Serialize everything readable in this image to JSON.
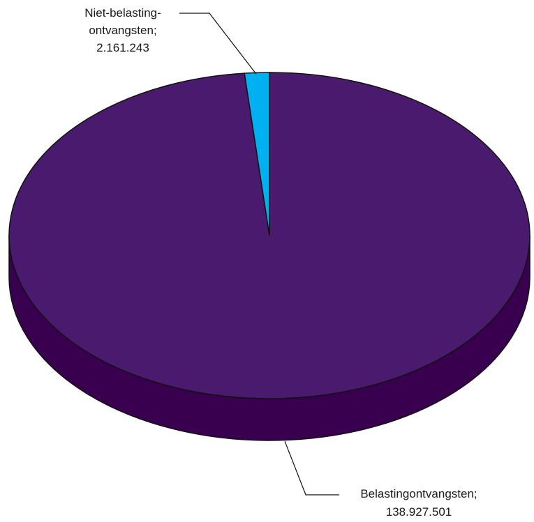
{
  "chart_data": {
    "type": "pie",
    "style": "3d",
    "series": [
      {
        "label_lines": [
          "Niet-belasting-",
          "ontvangsten;"
        ],
        "value_label": "2.161.243",
        "value": 2161243,
        "color": "#00b0f0"
      },
      {
        "label_lines": [
          "Belastingontvangsten;"
        ],
        "value_label": "138.927.501",
        "value": 138927501,
        "color": "#4a1a6e"
      }
    ],
    "side_color": "#3a0050"
  }
}
